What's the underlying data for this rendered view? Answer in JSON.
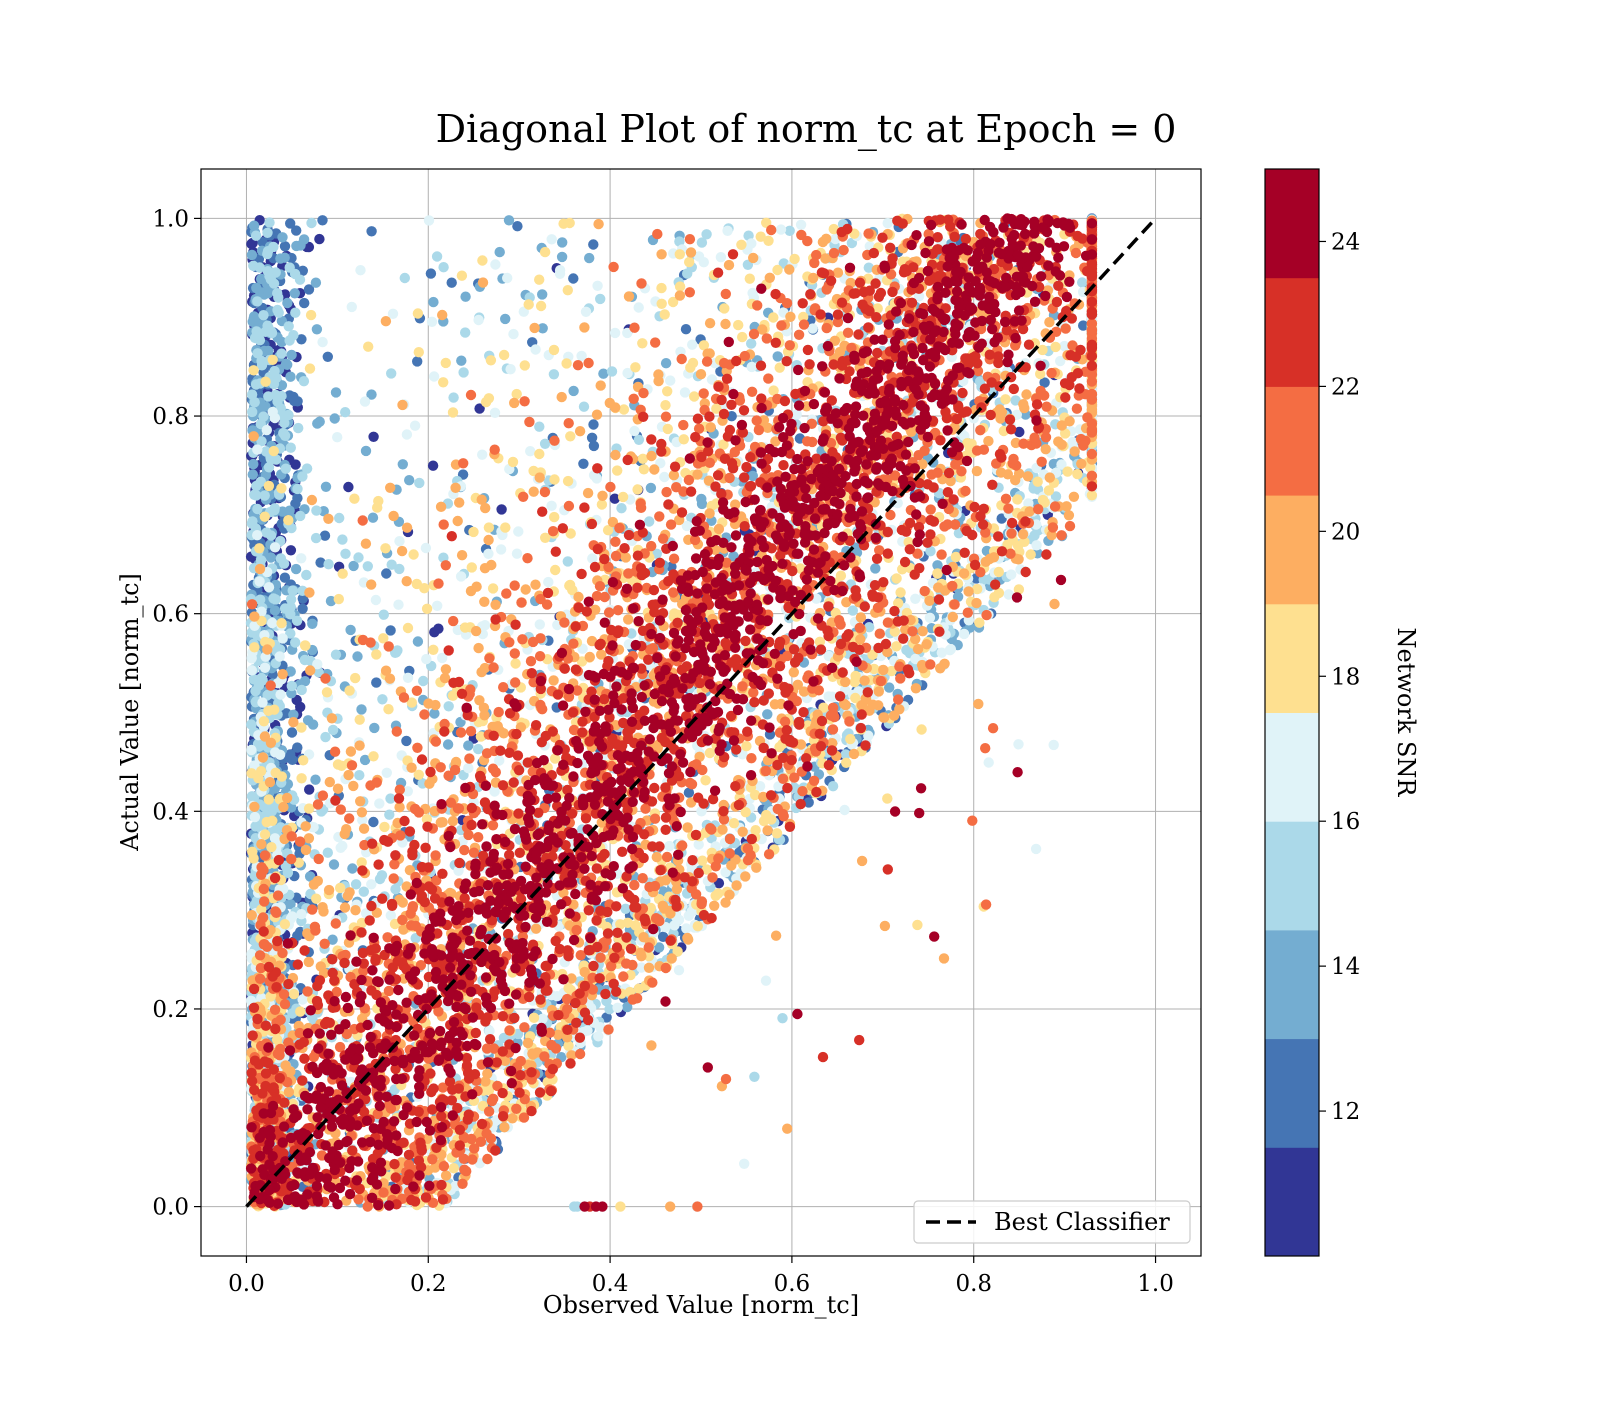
{
  "chart_data": {
    "type": "scatter",
    "title": "Diagonal Plot of norm_tc at Epoch = 0",
    "xlabel": "Observed Value [norm_tc]",
    "ylabel": "Actual Value [norm_tc]",
    "xlim": [
      -0.05,
      1.05
    ],
    "ylim": [
      -0.05,
      1.05
    ],
    "xticks": [
      "0.0",
      "0.2",
      "0.4",
      "0.6",
      "0.8",
      "1.0"
    ],
    "yticks": [
      "0.0",
      "0.2",
      "0.4",
      "0.6",
      "0.8",
      "1.0"
    ],
    "grid": true,
    "colorbar": {
      "label": "Network SNR",
      "range": [
        10,
        25
      ],
      "ticks": [
        "12",
        "14",
        "16",
        "18",
        "20",
        "22",
        "24"
      ],
      "colormap": "RdYlBu_r (discrete, 10 levels)",
      "colors": [
        "#313695",
        "#4575b4",
        "#74add1",
        "#abd9e9",
        "#e0f3f8",
        "#fee090",
        "#fdae61",
        "#f46d43",
        "#d73027",
        "#a50026"
      ]
    },
    "reference_line": {
      "name": "Best Classifier",
      "x": [
        0.0,
        1.0
      ],
      "y": [
        0.0,
        1.0
      ],
      "style": "dashed",
      "color": "#000000"
    },
    "legend": {
      "placement": "bottom-right",
      "entries": [
        "Best Classifier"
      ]
    },
    "point_distribution": {
      "description": "Dense scatter of several thousand points; high-SNR points (red) cluster along and below the diagonal, low-SNR points (blue) spread toward x≈0 across all y",
      "x_range": [
        0.0,
        0.93
      ],
      "y_range": [
        0.0,
        1.0
      ]
    }
  }
}
